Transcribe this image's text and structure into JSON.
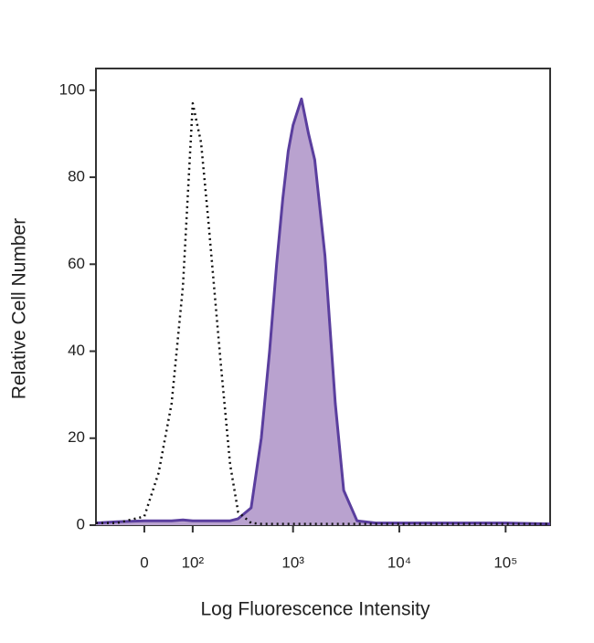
{
  "chart_data": {
    "type": "histogram-overlay",
    "xlabel": "Log Fluorescence Intensity",
    "ylabel": "Relative Cell Number",
    "xscale": "biexponential",
    "xlim": [
      -100,
      262144
    ],
    "ylim": [
      0,
      105
    ],
    "xticks": [
      0,
      {
        "value": 100,
        "label": "10²"
      },
      {
        "value": 1000,
        "label": "10³"
      },
      {
        "value": 10000,
        "label": "10⁴"
      },
      {
        "value": 100000,
        "label": "10⁵"
      }
    ],
    "yticks": [
      0,
      20,
      40,
      60,
      80,
      100
    ],
    "x": [
      -100,
      -50,
      0,
      25,
      50,
      75,
      100,
      125,
      150,
      200,
      250,
      300,
      400,
      500,
      600,
      700,
      800,
      900,
      1000,
      1200,
      1400,
      1600,
      2000,
      2500,
      3000,
      4000,
      6000,
      10000,
      30000,
      100000,
      262144
    ],
    "series": [
      {
        "color": "#111111",
        "linestyle": "dotted",
        "fill": false,
        "values": [
          0.5,
          0.5,
          2,
          12,
          28,
          55,
          97,
          88,
          70,
          38,
          14,
          3,
          0.5,
          0.3,
          0.3,
          0.3,
          0.3,
          0.3,
          0.3,
          0.3,
          0.3,
          0.3,
          0.3,
          0.3,
          0.3,
          0.3,
          0.3,
          0.3,
          0.3,
          0.3,
          0.3
        ]
      },
      {
        "color": "#5a3e9e",
        "fill_color": "#b9a2cf",
        "linestyle": "solid",
        "fill": true,
        "values": [
          0.5,
          0.8,
          1,
          1,
          1,
          1.2,
          1,
          1,
          1,
          1,
          1,
          1.5,
          4,
          20,
          40,
          60,
          75,
          86,
          92,
          98,
          90,
          84,
          62,
          28,
          8,
          1,
          0.5,
          0.5,
          0.5,
          0.5,
          0.3
        ]
      }
    ]
  }
}
